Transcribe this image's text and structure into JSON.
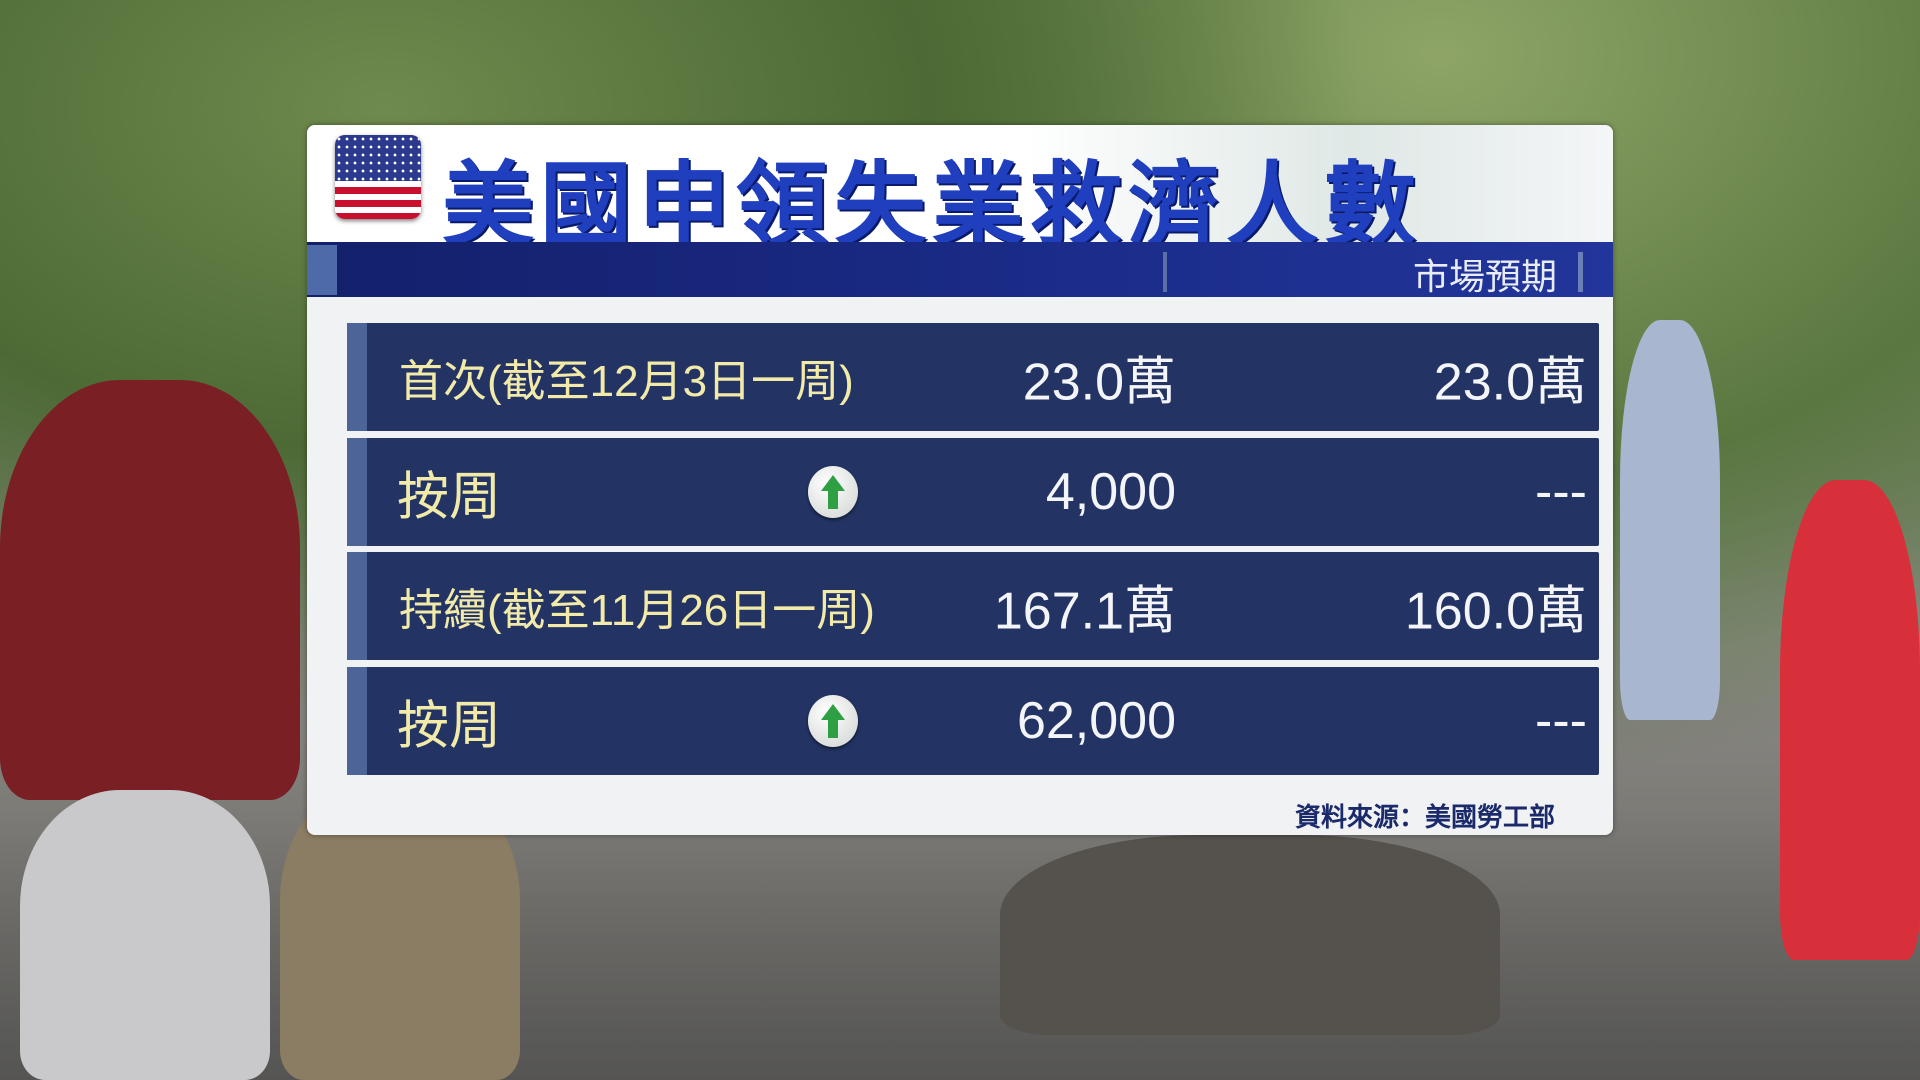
{
  "title": "美國申領失業救濟人數",
  "header": {
    "expectation_label": "市場預期"
  },
  "rows": [
    {
      "label": "首次(截至12月3日一周)",
      "value": "23.0萬",
      "expected": "23.0萬"
    },
    {
      "label": "按周",
      "trend": "up",
      "trend_icon": "green-up-arrow-icon",
      "value": "4,000",
      "expected": "---"
    },
    {
      "label": "持續(截至11月26日一周)",
      "value": "167.1萬",
      "expected": "160.0萬"
    },
    {
      "label": "按周",
      "trend": "up",
      "trend_icon": "green-up-arrow-icon",
      "value": "62,000",
      "expected": "---"
    }
  ],
  "source": "資料來源：美國勞工部",
  "colors": {
    "title": "#1f3fbf",
    "row_bg": "#233464",
    "label": "#f2eaa8",
    "value": "#f4f5f8",
    "arrow": "#2ea043"
  }
}
